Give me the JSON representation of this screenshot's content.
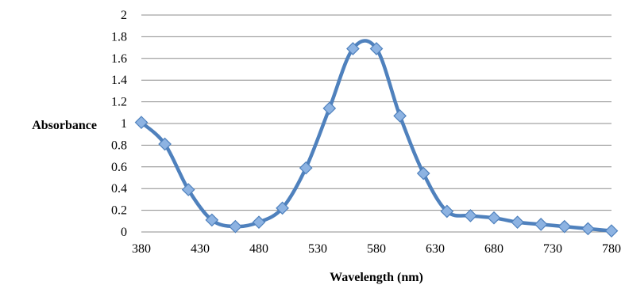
{
  "chart_data": {
    "type": "line",
    "title": "",
    "xlabel": "Wavelength (nm)",
    "ylabel": "Absorbance",
    "xlim": [
      380,
      780
    ],
    "ylim": [
      0,
      2
    ],
    "x_ticks": [
      "380",
      "430",
      "480",
      "530",
      "580",
      "630",
      "680",
      "730",
      "780"
    ],
    "y_ticks": [
      "0",
      "0.2",
      "0.4",
      "0.6",
      "0.8",
      "1",
      "1.2",
      "1.4",
      "1.6",
      "1.8",
      "2"
    ],
    "grid": true,
    "smooth": true,
    "series": [
      {
        "color": "#4f81bd",
        "marker_color": "#8db3e2",
        "marker": "diamond",
        "x": [
          380,
          400,
          420,
          440,
          460,
          480,
          500,
          520,
          540,
          560,
          580,
          600,
          620,
          640,
          660,
          680,
          700,
          720,
          740,
          760,
          780
        ],
        "values": [
          1.01,
          0.81,
          0.39,
          0.11,
          0.05,
          0.09,
          0.22,
          0.59,
          1.14,
          1.69,
          1.69,
          1.07,
          0.54,
          0.19,
          0.15,
          0.13,
          0.09,
          0.07,
          0.05,
          0.03,
          0.01
        ]
      }
    ]
  }
}
